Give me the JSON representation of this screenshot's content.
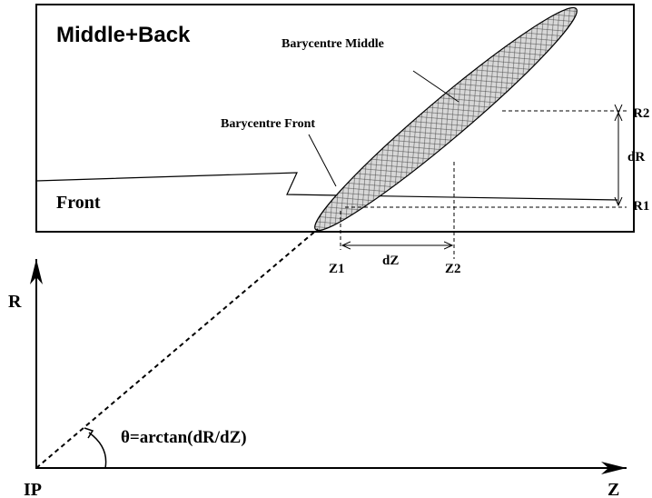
{
  "labels": {
    "region_back": "Middle+Back",
    "bary_middle": "Barycentre Middle",
    "bary_front": "Barycentre Front",
    "region_front": "Front",
    "r2": "R2",
    "dr": "dR",
    "r1": "R1",
    "z1": "Z1",
    "dz": "dZ",
    "z2": "Z2",
    "axis_r": "R",
    "theta": "θ=arctan(dR/dZ)",
    "ip": "IP",
    "axis_z": "Z"
  }
}
